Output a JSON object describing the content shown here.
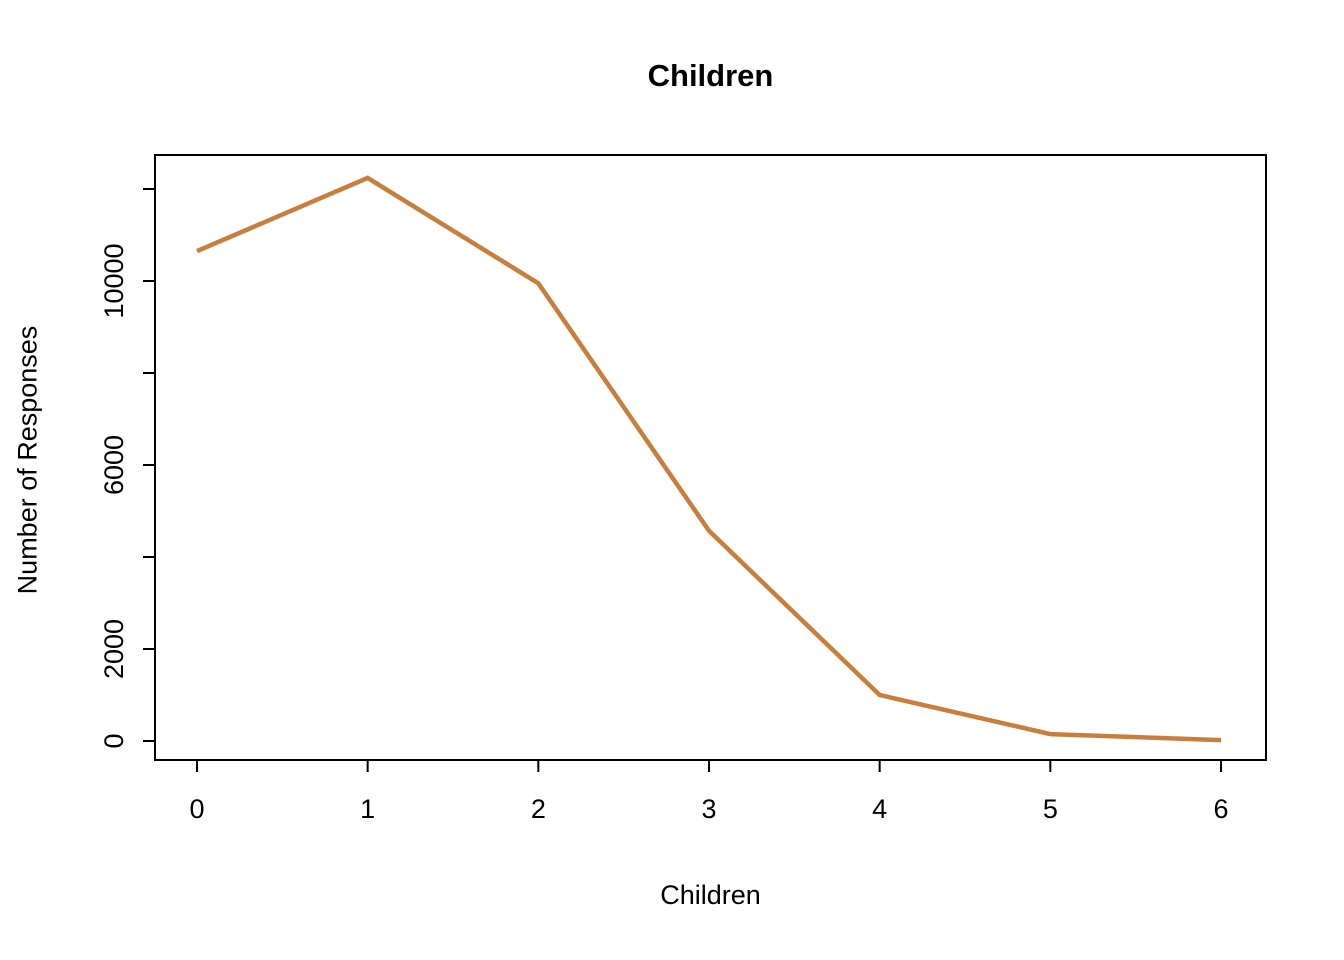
{
  "chart_data": {
    "type": "line",
    "title": "Children",
    "xlabel": "Children",
    "ylabel": "Number of Responses",
    "x": [
      0,
      1,
      2,
      3,
      4,
      5,
      6
    ],
    "values": [
      10650,
      12240,
      9950,
      4570,
      1000,
      150,
      20
    ],
    "x_ticks": [
      {
        "v": 0,
        "label": "0"
      },
      {
        "v": 1,
        "label": "1"
      },
      {
        "v": 2,
        "label": "2"
      },
      {
        "v": 3,
        "label": "3"
      },
      {
        "v": 4,
        "label": "4"
      },
      {
        "v": 5,
        "label": "5"
      },
      {
        "v": 6,
        "label": "6"
      }
    ],
    "y_ticks": [
      {
        "v": 0,
        "label": "0"
      },
      {
        "v": 2000,
        "label": "2000"
      },
      {
        "v": 4000,
        "label": ""
      },
      {
        "v": 6000,
        "label": "6000"
      },
      {
        "v": 8000,
        "label": ""
      },
      {
        "v": 10000,
        "label": "10000"
      },
      {
        "v": 12000,
        "label": ""
      }
    ],
    "xlim": [
      0,
      6
    ],
    "ylim": [
      0,
      12000
    ],
    "line_color": "#C87E3C",
    "axis_color": "#000000",
    "grid": false,
    "legend": false
  }
}
